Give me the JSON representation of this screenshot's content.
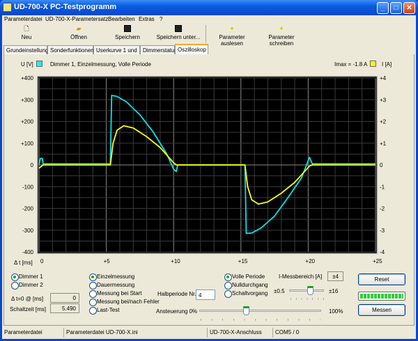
{
  "window": {
    "title": "UD-700-X PC-Testprogramm",
    "controls": [
      "minimize",
      "maximize",
      "close"
    ]
  },
  "menu": [
    "Parameterdatei",
    "UD-700-X-Parametersatz",
    "Bearbeiten",
    "Extras",
    "?"
  ],
  "toolbar": [
    {
      "label": "Neu",
      "icon": "new-file-icon"
    },
    {
      "label": "Öffnen",
      "icon": "open-folder-icon"
    },
    {
      "label": "Speichern",
      "icon": "save-icon"
    },
    {
      "label": "Speichern unter...",
      "icon": "save-as-icon"
    },
    {
      "label": "Parameter auslesen",
      "icon": "read-parameters-icon"
    },
    {
      "label": "Parameter schreiben",
      "icon": "write-parameters-icon"
    }
  ],
  "tabs": [
    {
      "label": "Grundeinstellung"
    },
    {
      "label": "Sonderfunktionen"
    },
    {
      "label": "Userkurve 1 und 2"
    },
    {
      "label": "Dimmerstatus"
    },
    {
      "label": "Oszilloskop",
      "active": true
    }
  ],
  "scope": {
    "u_label": "U [V]",
    "u_color": "#00ffff",
    "caption": "Dimmer 1, Einzelmessung, Volle Periode",
    "imax": "Imax = -1.8 A",
    "i_label": "I [A]",
    "i_color": "#ffff00",
    "t_label": "Δ t [ms]"
  },
  "chart_data": {
    "type": "line",
    "background": "#000000",
    "grid": true,
    "xlabel": "Δ t [ms]",
    "ylabel": "U [V]",
    "y2label": "I [A]",
    "xlim": [
      0,
      25
    ],
    "ylim": [
      -400,
      400
    ],
    "y2lim": [
      -4,
      4
    ],
    "xticks": [
      "0",
      "+5",
      "+10",
      "+15",
      "+20",
      "+25"
    ],
    "yticks": [
      "+400",
      "+300",
      "+200",
      "+100",
      "0",
      "-100",
      "-200",
      "-300",
      "-400"
    ],
    "y2ticks": [
      "+4",
      "+3",
      "+2",
      "+1",
      "0",
      "-1",
      "-2",
      "-3",
      "-4"
    ],
    "series": [
      {
        "name": "U [V]",
        "axis": "left",
        "color": "#00e5ee",
        "points": [
          [
            0,
            0
          ],
          [
            0.1,
            30
          ],
          [
            0.25,
            30
          ],
          [
            0.3,
            5
          ],
          [
            5.3,
            5
          ],
          [
            5.4,
            320
          ],
          [
            5.8,
            315
          ],
          [
            6.5,
            290
          ],
          [
            7.5,
            230
          ],
          [
            8.5,
            150
          ],
          [
            9.5,
            50
          ],
          [
            10.0,
            -20
          ],
          [
            10.2,
            -30
          ],
          [
            10.3,
            0
          ],
          [
            15.3,
            0
          ],
          [
            15.4,
            -315
          ],
          [
            15.8,
            -313
          ],
          [
            16.5,
            -290
          ],
          [
            17.5,
            -235
          ],
          [
            18.5,
            -150
          ],
          [
            19.5,
            -60
          ],
          [
            20.0,
            20
          ],
          [
            20.1,
            35
          ],
          [
            20.3,
            5
          ],
          [
            25,
            5
          ]
        ]
      },
      {
        "name": "I [A]",
        "axis": "right",
        "color": "#ffff00",
        "points": [
          [
            0,
            -0.15
          ],
          [
            0.3,
            0
          ],
          [
            5.3,
            0
          ],
          [
            5.5,
            1.0
          ],
          [
            5.8,
            1.6
          ],
          [
            6.3,
            1.8
          ],
          [
            7,
            1.7
          ],
          [
            8,
            1.3
          ],
          [
            9,
            0.8
          ],
          [
            10,
            0.1
          ],
          [
            10.2,
            0
          ],
          [
            15.3,
            0
          ],
          [
            15.5,
            -1.0
          ],
          [
            15.8,
            -1.6
          ],
          [
            16.3,
            -1.8
          ],
          [
            17,
            -1.7
          ],
          [
            18,
            -1.3
          ],
          [
            19,
            -0.8
          ],
          [
            20.1,
            -0.05
          ],
          [
            20.3,
            0
          ],
          [
            25,
            0
          ]
        ]
      }
    ]
  },
  "controls": {
    "dimmer": [
      {
        "label": "Dimmer 1",
        "checked": true
      },
      {
        "label": "Dimmer 2",
        "checked": false
      }
    ],
    "t0_label": "Δ t=0 @ [ms]",
    "t0_value": "0",
    "schaltzeit_label": "Schaltzeit [ms]",
    "schaltzeit_value": "5.490",
    "mode": [
      {
        "label": "Einzelmessung",
        "checked": true
      },
      {
        "label": "Dauermessung"
      },
      {
        "label": "Messung bei Start"
      },
      {
        "label": "Messung bei/nach Fehler"
      },
      {
        "label": "Last-Test"
      }
    ],
    "halbperiode_label": "Halbperiode Nr.",
    "halbperiode_value": "4",
    "ansteuerung_label": "Ansteuerung 0%",
    "ansteuerung_max": "100%",
    "ansteuerung_level": 0.38,
    "trigger": [
      {
        "label": "Volle Periode",
        "checked": true
      },
      {
        "label": "Nulldurchgang"
      },
      {
        "label": "Schaltvorgang"
      }
    ],
    "messbereich_label": "I-Messbereich [A]",
    "messbereich_value": "±4",
    "range_min": "±0.5",
    "range_max": "±16",
    "range_level": 0.6,
    "reset": "Reset",
    "messen": "Messen",
    "progress": 1.0
  },
  "status": [
    "Parameterdatei",
    "Parameterdatei UD-700-X.ini",
    "UD-700-X-Anschluss",
    "COM5 / 0"
  ]
}
